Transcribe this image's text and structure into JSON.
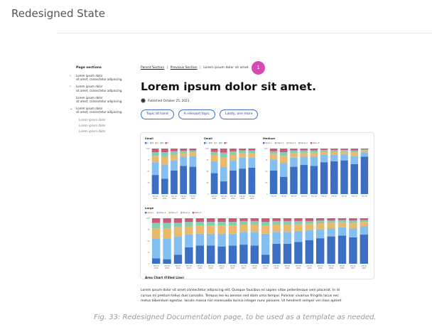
{
  "header": {
    "title": "Redesigned State"
  },
  "sidebar": {
    "heading": "Page sections",
    "items": [
      {
        "lines": [
          "Lorem ipsum dolor",
          "sit amet, consectetur adipiscing."
        ],
        "chevron": "›"
      },
      {
        "lines": [
          "Lorem ipsum dolor",
          "sit amet, consectetur adipiscing."
        ],
        "chevron": "›"
      },
      {
        "lines": [
          "Lorem ipsum dolor",
          "sit amet, consectetur adipiscing."
        ],
        "chevron": ""
      },
      {
        "lines": [
          "Lorem ipsum dolor",
          "sit amet, consectetur adipiscing."
        ],
        "chevron": "⌄"
      }
    ],
    "subitems": [
      "Lorem ipsum dolor",
      "Lorem ipsum dolor",
      "Lorem ipsum dolor"
    ]
  },
  "breadcrumb": {
    "parent": "Parent Section",
    "sep": "|",
    "previous": "Previous Section",
    "current": "Lorem ipsum dolor sit amet."
  },
  "marker": "1",
  "doc": {
    "title": "Lorem ipsum dolor sit amet.",
    "published": "Published October 25, 2023",
    "avatar_icon": "person-avatar-icon"
  },
  "chips": [
    "Topic at hand",
    "A relevant topic",
    "Lastly, one more"
  ],
  "colors": {
    "accent": "#3b6fc7",
    "marker": "#d54bb3",
    "series": [
      "#3c6ec4",
      "#83bff0",
      "#e9b96c",
      "#83cdb0",
      "#cf5679"
    ]
  },
  "chart_data": [
    {
      "type": "bar",
      "stacked": true,
      "title": "Small",
      "legend": [
        "A",
        "B",
        "C",
        "D",
        "E"
      ],
      "ylim": [
        0,
        100
      ],
      "categories": [
        "FW 1H 2021",
        "FW 2H 2021",
        "FW 1H 2022",
        "FW 2H 2022",
        "FW 1H 2023"
      ],
      "series": [
        {
          "name": "A",
          "values": [
            42,
            34,
            52,
            62,
            60
          ]
        },
        {
          "name": "B",
          "values": [
            28,
            30,
            22,
            20,
            24
          ]
        },
        {
          "name": "C",
          "values": [
            14,
            18,
            12,
            8,
            8
          ]
        },
        {
          "name": "D",
          "values": [
            8,
            10,
            8,
            5,
            4
          ]
        },
        {
          "name": "E",
          "values": [
            8,
            8,
            6,
            5,
            4
          ]
        }
      ]
    },
    {
      "type": "bar",
      "stacked": true,
      "title": "Small",
      "legend": [
        "A",
        "B",
        "C",
        "D",
        "E"
      ],
      "ylim": [
        0,
        100
      ],
      "categories": [
        "FW 1H 2021",
        "FW 2H 2021",
        "FW 1H 2022",
        "FW 2H 2022",
        "FW 1H 2023"
      ],
      "series": [
        {
          "name": "A",
          "values": [
            46,
            28,
            52,
            56,
            58
          ]
        },
        {
          "name": "B",
          "values": [
            26,
            32,
            22,
            24,
            22
          ]
        },
        {
          "name": "C",
          "values": [
            14,
            20,
            12,
            10,
            10
          ]
        },
        {
          "name": "D",
          "values": [
            7,
            11,
            8,
            6,
            6
          ]
        },
        {
          "name": "E",
          "values": [
            7,
            9,
            6,
            4,
            4
          ]
        }
      ]
    },
    {
      "type": "bar",
      "stacked": true,
      "title": "Medium",
      "legend": [
        "Value 1",
        "Value 2",
        "Value 3",
        "Value 4",
        "Value 5"
      ],
      "ylim": [
        0,
        100
      ],
      "categories": [
        "FW 1H",
        "FW 2H",
        "FW 1H",
        "FW 2H",
        "FW 1H",
        "FW 2H",
        "FW 1H",
        "FW 2H",
        "FW 1H",
        "FW 2H"
      ],
      "series": [
        {
          "name": "Value 1",
          "values": [
            52,
            38,
            60,
            64,
            62,
            70,
            72,
            74,
            66,
            82
          ]
        },
        {
          "name": "Value 2",
          "values": [
            24,
            30,
            20,
            18,
            20,
            16,
            14,
            14,
            18,
            10
          ]
        },
        {
          "name": "Value 3",
          "values": [
            12,
            16,
            10,
            9,
            9,
            7,
            7,
            6,
            8,
            4
          ]
        },
        {
          "name": "Value 4",
          "values": [
            6,
            8,
            6,
            5,
            5,
            4,
            4,
            3,
            4,
            2
          ]
        },
        {
          "name": "Value 5",
          "values": [
            6,
            8,
            4,
            4,
            4,
            3,
            3,
            3,
            4,
            2
          ]
        }
      ]
    },
    {
      "type": "bar",
      "stacked": true,
      "title": "Large",
      "legend": [
        "Value 1",
        "Value 2",
        "Value 3",
        "Value 4",
        "Value 5"
      ],
      "ylim": [
        0,
        100
      ],
      "categories": [
        "FW 1H 2018",
        "FW 2H 2018",
        "FW 1H 2019",
        "FW 2H 2019",
        "FW 1H 2020",
        "FW 2H 2020",
        "FW 1H 2021",
        "FW 2H 2021",
        "FW 1H 2022",
        "FW 2H 2022",
        "FW 1H 2023",
        "FW 2H 2023",
        "FW 1H 2024",
        "FW 2H 2024",
        "FW 1H 2025",
        "FW 2H 2025",
        "FW 1H 2026",
        "FW 2H 2026",
        "FW 1H 2027",
        "FW 2H 2027"
      ],
      "series": [
        {
          "name": "Value 1",
          "values": [
            12,
            10,
            20,
            36,
            40,
            40,
            38,
            40,
            42,
            40,
            20,
            44,
            44,
            48,
            52,
            56,
            60,
            62,
            58,
            64
          ]
        },
        {
          "name": "Value 2",
          "values": [
            44,
            46,
            40,
            28,
            26,
            26,
            28,
            26,
            28,
            30,
            46,
            26,
            26,
            24,
            22,
            20,
            18,
            18,
            20,
            18
          ]
        },
        {
          "name": "Value 3",
          "values": [
            22,
            22,
            20,
            18,
            18,
            18,
            18,
            18,
            16,
            16,
            18,
            16,
            16,
            15,
            14,
            13,
            12,
            11,
            12,
            10
          ]
        },
        {
          "name": "Value 4",
          "values": [
            12,
            12,
            10,
            10,
            8,
            8,
            8,
            8,
            8,
            8,
            8,
            8,
            8,
            7,
            6,
            6,
            5,
            5,
            5,
            4
          ]
        },
        {
          "name": "Value 5",
          "values": [
            10,
            10,
            10,
            8,
            8,
            8,
            8,
            8,
            6,
            6,
            8,
            6,
            6,
            6,
            6,
            5,
            5,
            4,
            5,
            4
          ]
        }
      ]
    }
  ],
  "next_section_title": "Area Chart (Filled Line)",
  "paragraph": [
    "Lorem ipsum dolor sit amet consectetur adipiscing elit. Quisque faucibus ex sapien vitae pellentesque sem placerat. In id",
    "cursus mi pretium tellus duis convallis. Tempus leo eu aenean sed diam urna tempor. Pulvinar vivamus fringilla lacus nec",
    "metus bibendum egestas. Iaculis massa nisl malesuada lacinia integer nunc posuere. Ut hendrerit semper vel class aptent"
  ],
  "caption": "Fig. 33: Redesigned Documentation page, to be used as a template as needed."
}
